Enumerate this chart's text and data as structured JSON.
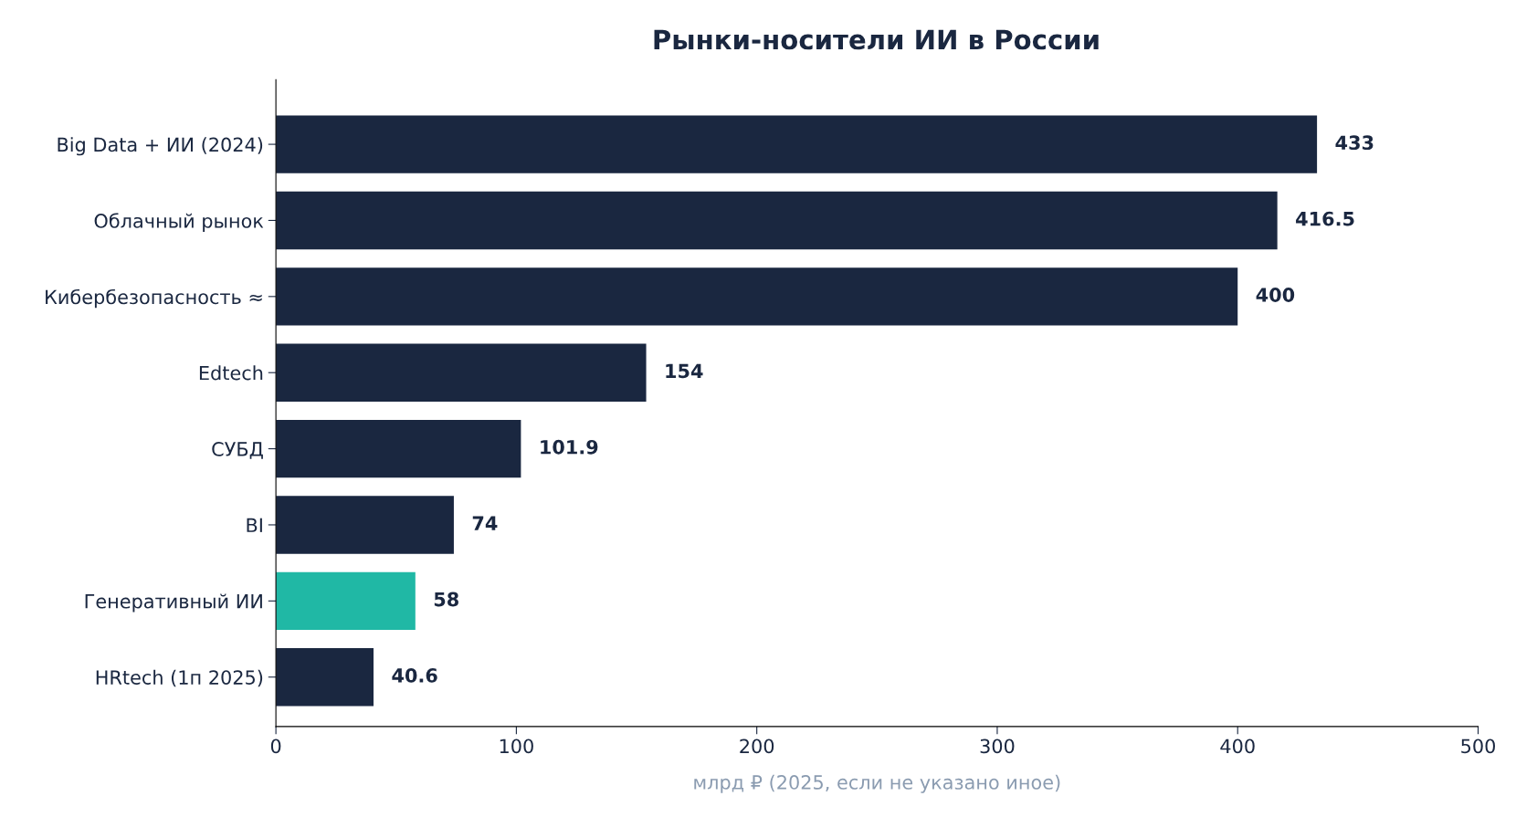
{
  "chart_data": {
    "type": "bar",
    "orientation": "horizontal",
    "title": "Рынки-носители ИИ в России",
    "xlabel": "млрд ₽ (2025, если не указано иное)",
    "categories": [
      "Big Data + ИИ (2024)",
      "Облачный рынок",
      "Кибербезопасность ≈",
      "Edtech",
      "СУБД",
      "BI",
      "Генеративный ИИ",
      "HRtech (1п 2025)"
    ],
    "values": [
      433,
      416.5,
      400,
      154,
      101.9,
      74,
      58,
      40.6
    ],
    "colors": [
      "#1a2740",
      "#1a2740",
      "#1a2740",
      "#1a2740",
      "#1a2740",
      "#1a2740",
      "#20b8a5",
      "#1a2740"
    ],
    "xlim": [
      0,
      500
    ],
    "xticks": [
      0,
      100,
      200,
      300,
      400,
      500
    ],
    "data_labels": true,
    "grid": false,
    "legend": false
  }
}
